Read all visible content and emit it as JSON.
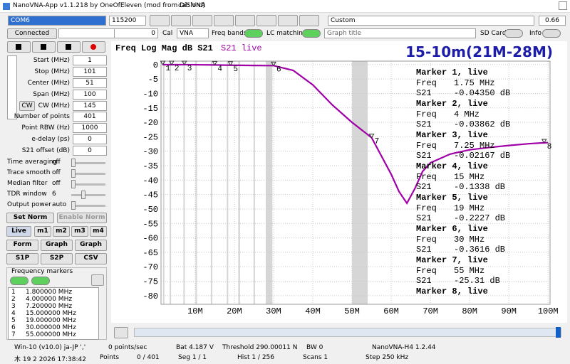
{
  "window": {
    "title": "NanoVNA-App v1.1.218 by OneOfEleven (mod from DiSlord)",
    "cal": "cal: VNA"
  },
  "toolbar": {
    "port": "COM6",
    "baud": "115200",
    "preset": "Custom",
    "zoom": "0.66"
  },
  "controls": {
    "connect": "Connected",
    "value": "0",
    "cal_label": "Cal",
    "cal_value": "VNA",
    "freq_bands": "Freq bands",
    "lc_matching": "LC matching",
    "graph_title": "Graph title",
    "sd_card": "SD Card",
    "info": "Info"
  },
  "sweep": [
    {
      "label": "Start (MHz)",
      "value": "1"
    },
    {
      "label": "Stop (MHz)",
      "value": "101"
    },
    {
      "label": "Center (MHz)",
      "value": "51"
    },
    {
      "label": "Span (MHz)",
      "value": "100"
    },
    {
      "label": "CW (MHz)",
      "value": "145"
    }
  ],
  "cw_button": "CW",
  "settings": [
    {
      "label": "Number of points",
      "value": "401"
    },
    {
      "label": "Point RBW (Hz)",
      "value": "1000"
    },
    {
      "label": "e-delay (ps)",
      "value": "0"
    },
    {
      "label": "S21 offset (dB)",
      "value": "0"
    }
  ],
  "sliders": [
    {
      "label": "Time averaging",
      "state": "off"
    },
    {
      "label": "Trace smooth",
      "state": "off"
    },
    {
      "label": "Median filter",
      "state": "off"
    },
    {
      "label": "TDR window",
      "state": "6"
    },
    {
      "label": "Output power",
      "state": "auto"
    }
  ],
  "buttons": {
    "set_norm": "Set Norm",
    "enable_norm": "Enable Norm",
    "modes": [
      "Live",
      "m1",
      "m2",
      "m3",
      "m4"
    ],
    "files": [
      "Form",
      "Graph",
      "Graph",
      "S1P",
      "S2P",
      "CSV"
    ]
  },
  "freq_markers": {
    "title": "Frequency markers",
    "rows": [
      [
        "1",
        "1.800000 MHz"
      ],
      [
        "2",
        "4.000000 MHz"
      ],
      [
        "3",
        "7.200000 MHz"
      ],
      [
        "4",
        "15.000000 MHz"
      ],
      [
        "5",
        "19.000000 MHz"
      ],
      [
        "6",
        "30.000000 MHz"
      ],
      [
        "7",
        "55.000000 MHz"
      ]
    ]
  },
  "status": [
    [
      "Win-10 (v10.0) ja-JP ','",
      "0 points/sec",
      "Bat 4.187 V",
      "Threshold 290.00011 N",
      "BW 0",
      "NanoVNA-H4 1.2.44"
    ],
    [
      "木 19 2 2026 17:38:42",
      "Points",
      "0 / 401",
      "Seg 1 / 1",
      "Hist 1 / 256",
      "Scans 1",
      "Step 250 kHz"
    ]
  ],
  "chart_data": {
    "type": "line",
    "title": "Freq Log Mag dB S21",
    "annotation": "15-10m(21M-28M)",
    "x": [
      1.75,
      4,
      7.25,
      10,
      15,
      19,
      25,
      30,
      35,
      40,
      45,
      50,
      55,
      60,
      62,
      64,
      66,
      68,
      70,
      75,
      80,
      85,
      90,
      95,
      100
    ],
    "series": [
      {
        "name": "S21 live",
        "color": "#a000a8",
        "values": [
          -0.04,
          -0.04,
          -0.02,
          -0.05,
          -0.13,
          -0.22,
          -0.3,
          -0.36,
          -2,
          -7,
          -14,
          -20,
          -25.3,
          -38,
          -44,
          -48,
          -43,
          -37,
          -34,
          -31,
          -29.5,
          -28.7,
          -28,
          -27.4,
          -27
        ]
      }
    ],
    "xlim": [
      1.3,
      100.5
    ],
    "ylim": [
      -83,
      1.2
    ],
    "xticks": [
      {
        "value": 10,
        "label": "10M"
      },
      {
        "value": 20,
        "label": "20M"
      },
      {
        "value": 30,
        "label": "30M"
      },
      {
        "value": 40,
        "label": "40M"
      },
      {
        "value": 50,
        "label": "50M"
      },
      {
        "value": 60,
        "label": "60M"
      },
      {
        "value": 70,
        "label": "70M"
      },
      {
        "value": 80,
        "label": "80M"
      },
      {
        "value": 90,
        "label": "90M"
      },
      {
        "value": 100,
        "label": "100M"
      }
    ],
    "yticks": [
      0,
      -5,
      -10,
      -15,
      -20,
      -25,
      -30,
      -35,
      -40,
      -45,
      -50,
      -55,
      -60,
      -65,
      -70,
      -75,
      -80
    ],
    "grid": true,
    "bands": [
      [
        1.8,
        2
      ],
      [
        3.5,
        3.8
      ],
      [
        7,
        7.2
      ],
      [
        10.1,
        10.15
      ],
      [
        14,
        14.35
      ],
      [
        18.07,
        18.17
      ],
      [
        21,
        21.45
      ],
      [
        24.89,
        24.99
      ],
      [
        28,
        29.7
      ],
      [
        50,
        54
      ]
    ],
    "marker_freq_label": "Freq",
    "marker_s21_label": "S21",
    "markers": [
      {
        "label": "1",
        "name": "Marker 1, live",
        "freq": "1.75 MHz",
        "s21": "-0.04350 dB",
        "x": 1.75,
        "y": -0.0435
      },
      {
        "label": "2",
        "name": "Marker 2, live",
        "freq": "4 MHz",
        "s21": "-0.03862 dB",
        "x": 4,
        "y": -0.03862
      },
      {
        "label": "3",
        "name": "Marker 3, live",
        "freq": "7.25 MHz",
        "s21": "-0.02167 dB",
        "x": 7.25,
        "y": -0.02167
      },
      {
        "label": "4",
        "name": "Marker 4, live",
        "freq": "15 MHz",
        "s21": "-0.1338 dB",
        "x": 15,
        "y": -0.1338
      },
      {
        "label": "5",
        "name": "Marker 5, live",
        "freq": "19 MHz",
        "s21": "-0.2227 dB",
        "x": 19,
        "y": -0.2227
      },
      {
        "label": "6",
        "name": "Marker 6, live",
        "freq": "30 MHz",
        "s21": "-0.3616 dB",
        "x": 30,
        "y": -0.3616
      },
      {
        "label": "7",
        "name": "Marker 7, live",
        "freq": "55 MHz",
        "s21": "-25.31 dB",
        "x": 55,
        "y": -25.31
      },
      {
        "label": "8",
        "name": "Marker 8, live",
        "x": 99,
        "y": -27.1
      }
    ]
  }
}
